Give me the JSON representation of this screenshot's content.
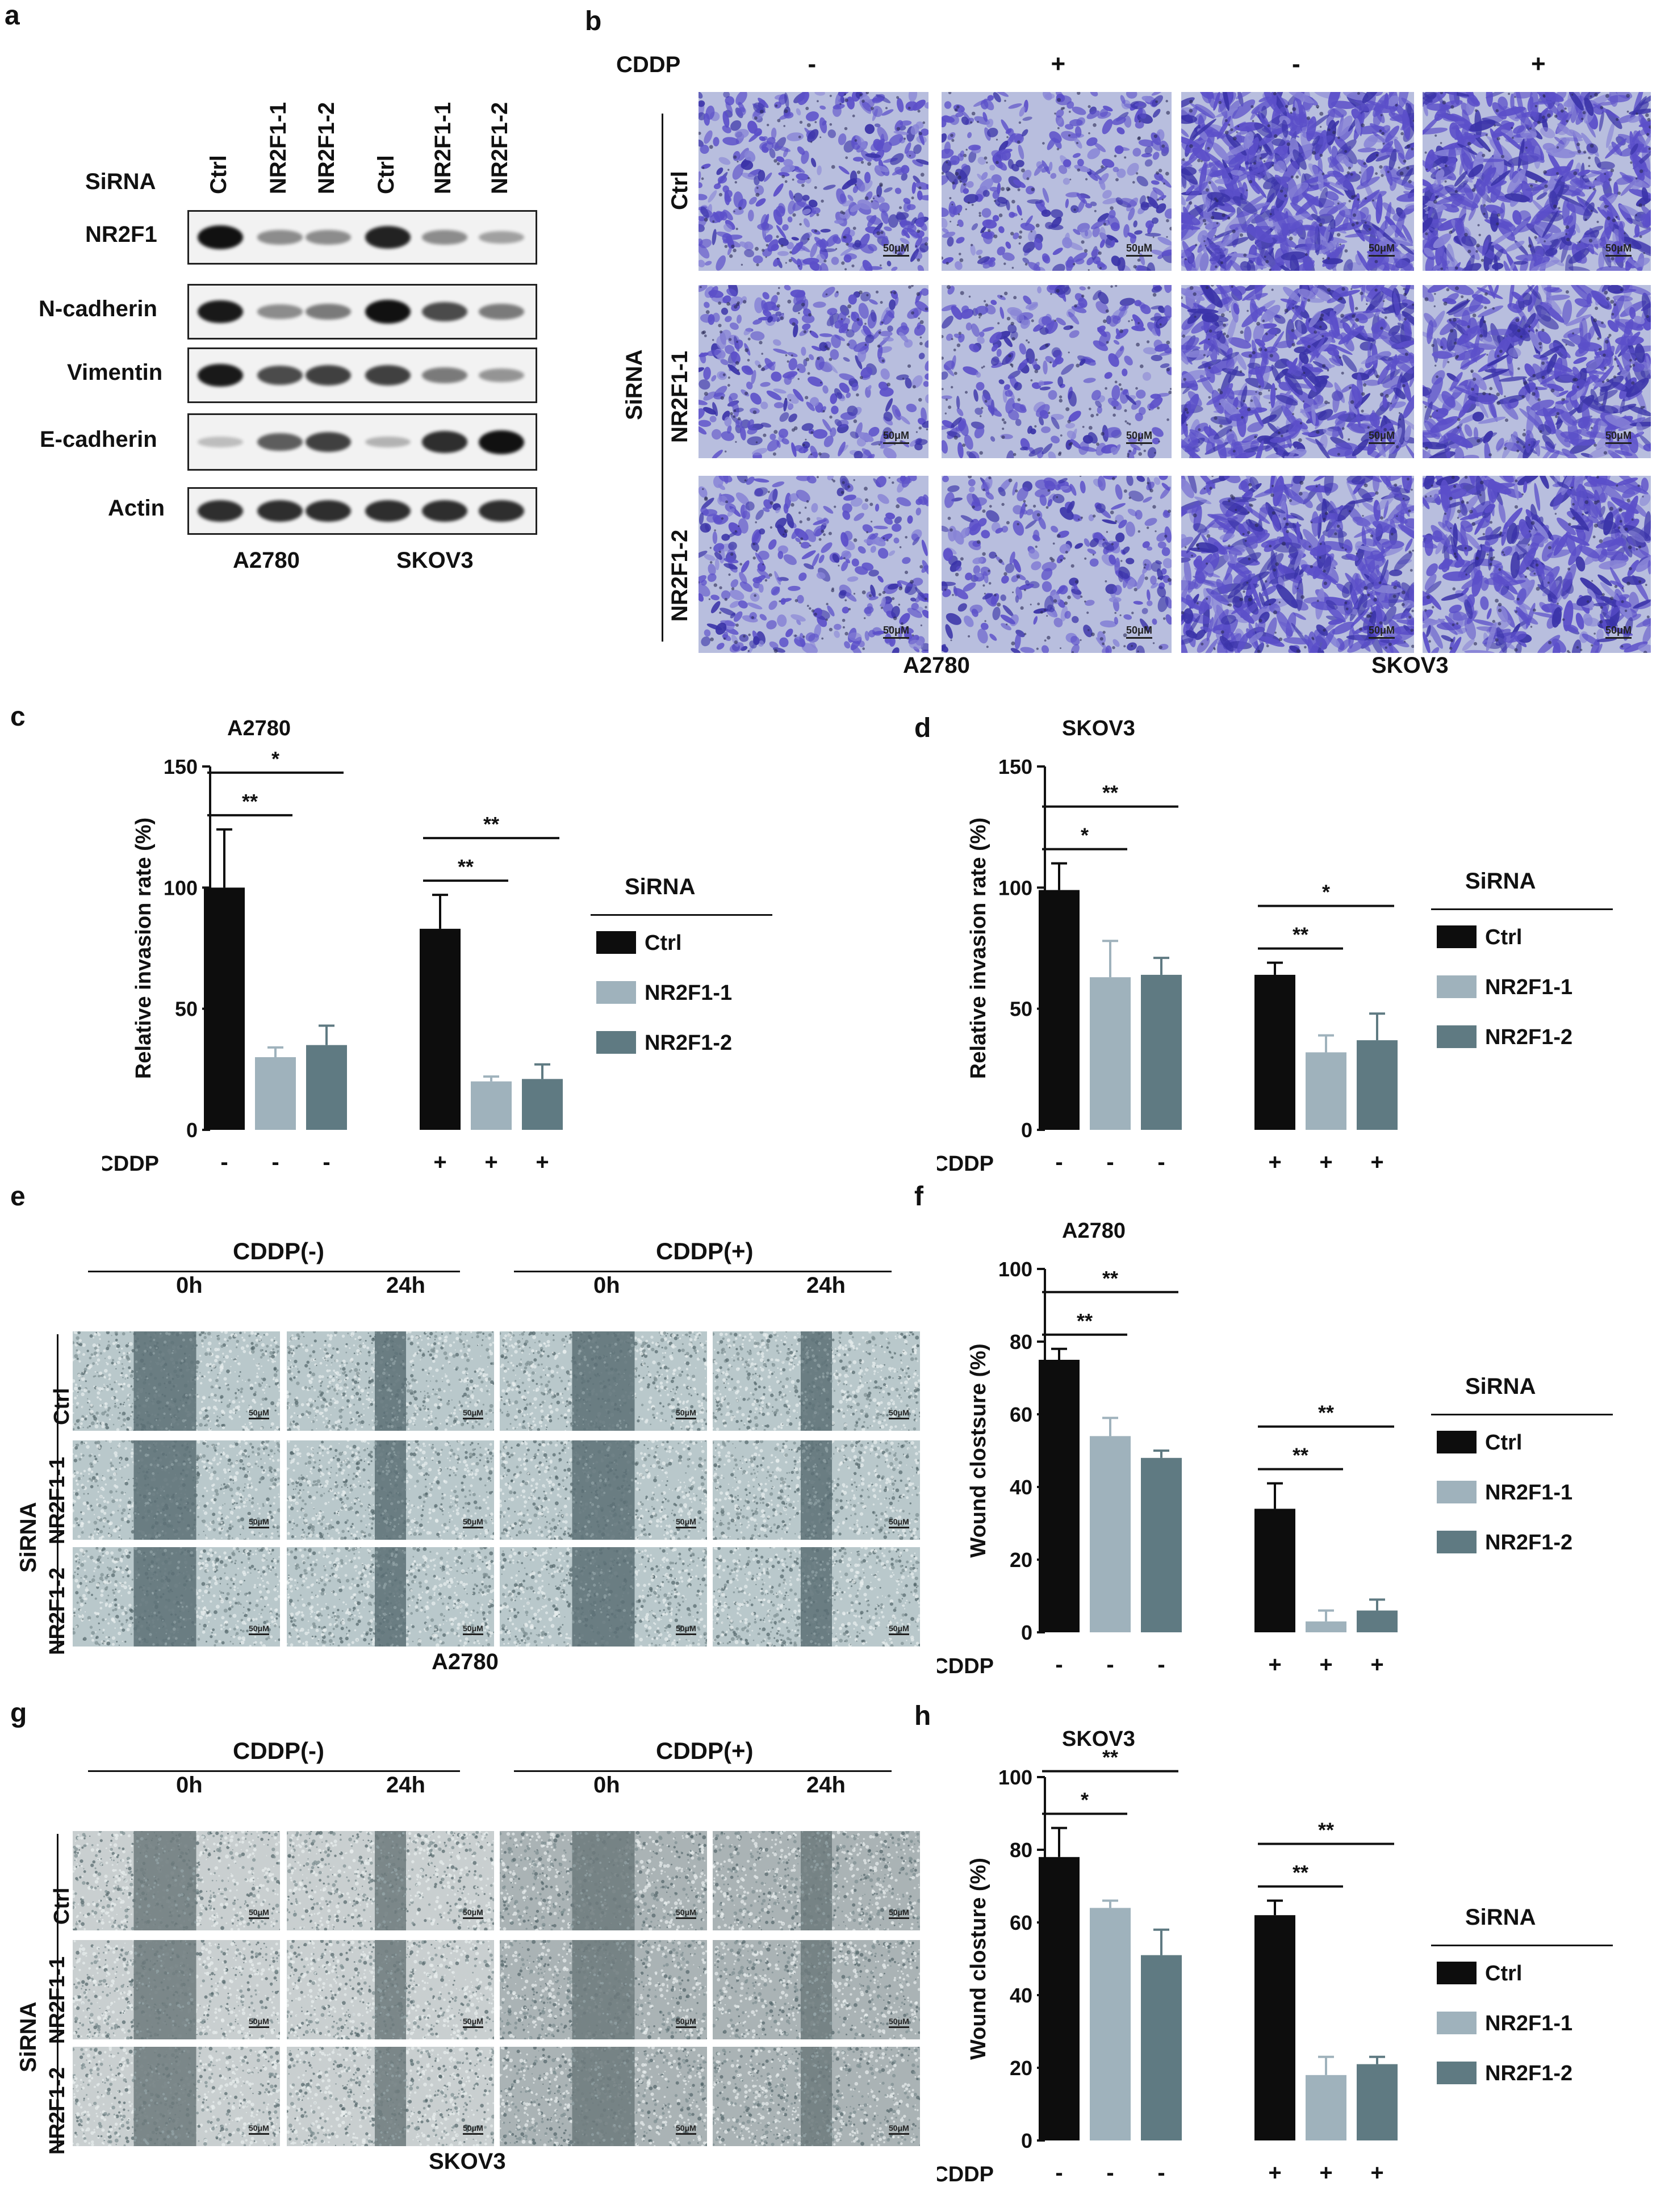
{
  "panel_a": {
    "letter": "a",
    "sirna_label": "SiRNA",
    "lanes": [
      "Ctrl",
      "NR2F1-1",
      "NR2F1-2",
      "Ctrl",
      "NR2F1-1",
      "NR2F1-2"
    ],
    "rows": [
      {
        "label": "NR2F1",
        "intensity": [
          1.0,
          0.35,
          0.35,
          0.9,
          0.35,
          0.25
        ]
      },
      {
        "label": "N-cadherin",
        "intensity": [
          0.95,
          0.35,
          0.45,
          1.0,
          0.7,
          0.45
        ]
      },
      {
        "label": "Vimentin",
        "intensity": [
          0.95,
          0.7,
          0.75,
          0.75,
          0.45,
          0.3
        ]
      },
      {
        "label": "E-cadherin",
        "intensity": [
          0.1,
          0.6,
          0.75,
          0.15,
          0.85,
          1.0
        ]
      },
      {
        "label": "Actin",
        "intensity": [
          0.85,
          0.85,
          0.85,
          0.85,
          0.85,
          0.85
        ]
      }
    ],
    "cell_lines": [
      "A2780",
      "SKOV3"
    ]
  },
  "panel_b": {
    "letter": "b",
    "cddp_label": "CDDP",
    "cddp_values": [
      "-",
      "+",
      "-",
      "+"
    ],
    "sirna_label": "SiRNA",
    "row_labels": [
      "Ctrl",
      "NR2F1-1",
      "NR2F1-2"
    ],
    "scalebar": "50μM",
    "cell_lines": [
      "A2780",
      "SKOV3"
    ]
  },
  "legend": {
    "title": "SiRNA",
    "items": [
      {
        "label": "Ctrl",
        "color": "#0d0d0d"
      },
      {
        "label": "NR2F1-1",
        "color": "#9fb2bc"
      },
      {
        "label": "NR2F1-2",
        "color": "#5f7a82"
      }
    ]
  },
  "charts": [
    {
      "letter": "c",
      "title": "A2780",
      "ylabel": "Relative invasion rate (%)",
      "xlabel": "CDDP",
      "cddp": [
        "-",
        "-",
        "-",
        "+",
        "+",
        "+"
      ],
      "ticks": [
        "0",
        "50",
        "100",
        "150"
      ],
      "signif": [
        {
          "from": 0,
          "to": 1,
          "level": 1,
          "text": "**"
        },
        {
          "from": 0,
          "to": 2,
          "level": 2,
          "text": "*"
        },
        {
          "from": 3,
          "to": 4,
          "level": 1,
          "text": "**"
        },
        {
          "from": 3,
          "to": 5,
          "level": 2,
          "text": "**"
        }
      ]
    },
    {
      "letter": "d",
      "title": "SKOV3",
      "ylabel": "Relative invasion rate (%)",
      "xlabel": "CDDP",
      "cddp": [
        "-",
        "-",
        "-",
        "+",
        "+",
        "+"
      ],
      "ticks": [
        "0",
        "50",
        "100",
        "150"
      ],
      "signif": [
        {
          "from": 0,
          "to": 1,
          "level": 1,
          "text": "*"
        },
        {
          "from": 0,
          "to": 2,
          "level": 2,
          "text": "**"
        },
        {
          "from": 3,
          "to": 4,
          "level": 1,
          "text": "**"
        },
        {
          "from": 3,
          "to": 5,
          "level": 2,
          "text": "*"
        }
      ]
    },
    {
      "letter": "f",
      "title": "A2780",
      "ylabel": "Wound clostsure (%)",
      "xlabel": "CDDP",
      "cddp": [
        "-",
        "-",
        "-",
        "+",
        "+",
        "+"
      ],
      "ticks": [
        "0",
        "20",
        "40",
        "60",
        "80",
        "100"
      ],
      "signif": [
        {
          "from": 0,
          "to": 1,
          "level": 1,
          "text": "**"
        },
        {
          "from": 0,
          "to": 2,
          "level": 2,
          "text": "**"
        },
        {
          "from": 3,
          "to": 4,
          "level": 1,
          "text": "**"
        },
        {
          "from": 3,
          "to": 5,
          "level": 2,
          "text": "**"
        }
      ]
    },
    {
      "letter": "h",
      "title": "SKOV3",
      "ylabel": "Wound closture (%)",
      "xlabel": "CDDP",
      "cddp": [
        "-",
        "-",
        "-",
        "+",
        "+",
        "+"
      ],
      "ticks": [
        "0",
        "20",
        "40",
        "60",
        "80",
        "100"
      ],
      "signif": [
        {
          "from": 0,
          "to": 1,
          "level": 1,
          "text": "*"
        },
        {
          "from": 0,
          "to": 2,
          "level": 2,
          "text": "**"
        },
        {
          "from": 3,
          "to": 4,
          "level": 1,
          "text": "**"
        },
        {
          "from": 3,
          "to": 5,
          "level": 2,
          "text": "**"
        }
      ]
    }
  ],
  "chart_data": [
    {
      "type": "bar",
      "title": "A2780",
      "ylabel": "Relative invasion rate (%)",
      "ylim": [
        0,
        150
      ],
      "categories": [
        "-",
        "-",
        "-",
        "+",
        "+",
        "+"
      ],
      "series_labels": [
        "Ctrl",
        "NR2F1-1",
        "NR2F1-2",
        "Ctrl",
        "NR2F1-1",
        "NR2F1-2"
      ],
      "values": [
        100,
        30,
        35,
        83,
        20,
        21
      ],
      "errors": [
        24,
        4,
        8,
        14,
        2,
        6
      ]
    },
    {
      "type": "bar",
      "title": "SKOV3",
      "ylabel": "Relative invasion rate (%)",
      "ylim": [
        0,
        150
      ],
      "categories": [
        "-",
        "-",
        "-",
        "+",
        "+",
        "+"
      ],
      "series_labels": [
        "Ctrl",
        "NR2F1-1",
        "NR2F1-2",
        "Ctrl",
        "NR2F1-1",
        "NR2F1-2"
      ],
      "values": [
        99,
        63,
        64,
        64,
        32,
        37
      ],
      "errors": [
        11,
        15,
        7,
        5,
        7,
        11
      ]
    },
    {
      "type": "bar",
      "title": "A2780",
      "ylabel": "Wound clostsure (%)",
      "ylim": [
        0,
        100
      ],
      "categories": [
        "-",
        "-",
        "-",
        "+",
        "+",
        "+"
      ],
      "series_labels": [
        "Ctrl",
        "NR2F1-1",
        "NR2F1-2",
        "Ctrl",
        "NR2F1-1",
        "NR2F1-2"
      ],
      "values": [
        75,
        54,
        48,
        34,
        3,
        6
      ],
      "errors": [
        3,
        5,
        2,
        7,
        3,
        3
      ]
    },
    {
      "type": "bar",
      "title": "SKOV3",
      "ylabel": "Wound closture (%)",
      "ylim": [
        0,
        100
      ],
      "categories": [
        "-",
        "-",
        "-",
        "+",
        "+",
        "+"
      ],
      "series_labels": [
        "Ctrl",
        "NR2F1-1",
        "NR2F1-2",
        "Ctrl",
        "NR2F1-1",
        "NR2F1-2"
      ],
      "values": [
        78,
        64,
        51,
        62,
        18,
        21
      ],
      "errors": [
        8,
        2,
        7,
        4,
        5,
        2
      ]
    }
  ],
  "panel_e": {
    "letter": "e",
    "cddp_neg": "CDDP(-)",
    "cddp_pos": "CDDP(+)",
    "times": [
      "0h",
      "24h",
      "0h",
      "24h"
    ],
    "sirna_label": "SiRNA",
    "row_labels": [
      "Ctrl",
      "NR2F1-1",
      "NR2F1-2"
    ],
    "scalebar": "50μM",
    "cell_line": "A2780"
  },
  "panel_g": {
    "letter": "g",
    "cddp_neg": "CDDP(-)",
    "cddp_pos": "CDDP(+)",
    "times": [
      "0h",
      "24h",
      "0h",
      "24h"
    ],
    "sirna_label": "SiRNA",
    "row_labels": [
      "Ctrl",
      "NR2F1-1",
      "NR2F1-2"
    ],
    "scalebar": "50μM",
    "cell_line": "SKOV3"
  }
}
